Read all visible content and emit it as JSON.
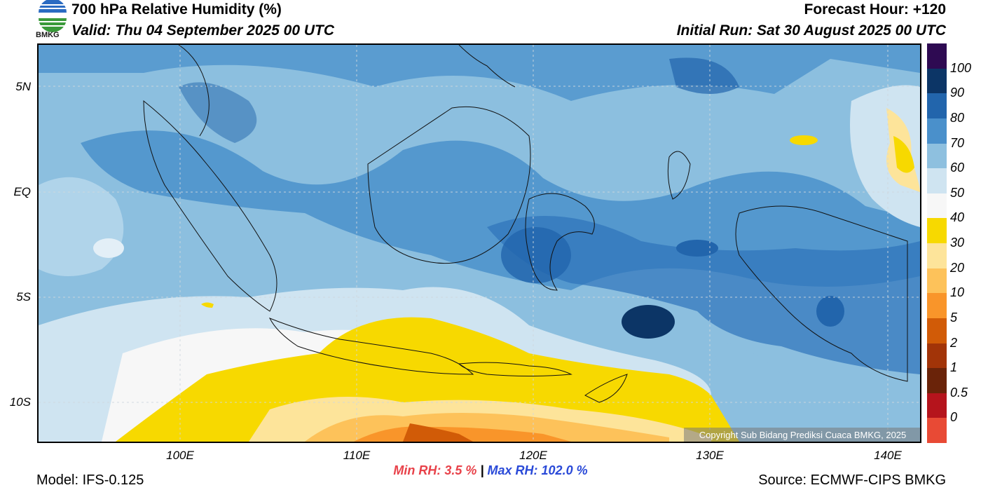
{
  "header": {
    "title": "700 hPa Relative Humidity (%)",
    "valid": "Valid: Thu 04 September 2025 00 UTC",
    "forecast_hour": "Forecast Hour: +120",
    "initial_run": "Initial Run: Sat 30 August 2025 00 UTC",
    "logo_text": "BMKG"
  },
  "axes": {
    "lat_labels": [
      "5N",
      "EQ",
      "5S",
      "10S"
    ],
    "lon_labels": [
      "100E",
      "110E",
      "120E",
      "130E",
      "140E"
    ]
  },
  "colorbar": {
    "labels": [
      "100",
      "90",
      "80",
      "70",
      "60",
      "50",
      "40",
      "30",
      "20",
      "10",
      "5",
      "2",
      "1",
      "0.5",
      "0"
    ],
    "colors": [
      "#2e0a52",
      "#0c3566",
      "#2265ac",
      "#4a90cb",
      "#8ec0df",
      "#cfe4f1",
      "#f7f7f7",
      "#f7d900",
      "#fde49a",
      "#fdc25a",
      "#f9952a",
      "#d15b07",
      "#a23408",
      "#6a2309",
      "#b5141c",
      "#e84a35"
    ]
  },
  "stats": {
    "min_label": "Min RH:",
    "min_value": "3.5 %",
    "separator": "|",
    "max_label": "Max RH:",
    "max_value": "102.0 %"
  },
  "footer": {
    "model": "Model: IFS-0.125",
    "source": "Source: ECMWF-CIPS BMKG",
    "copyright": "Copyright Sub Bidang Prediksi Cuaca BMKG, 2025"
  }
}
